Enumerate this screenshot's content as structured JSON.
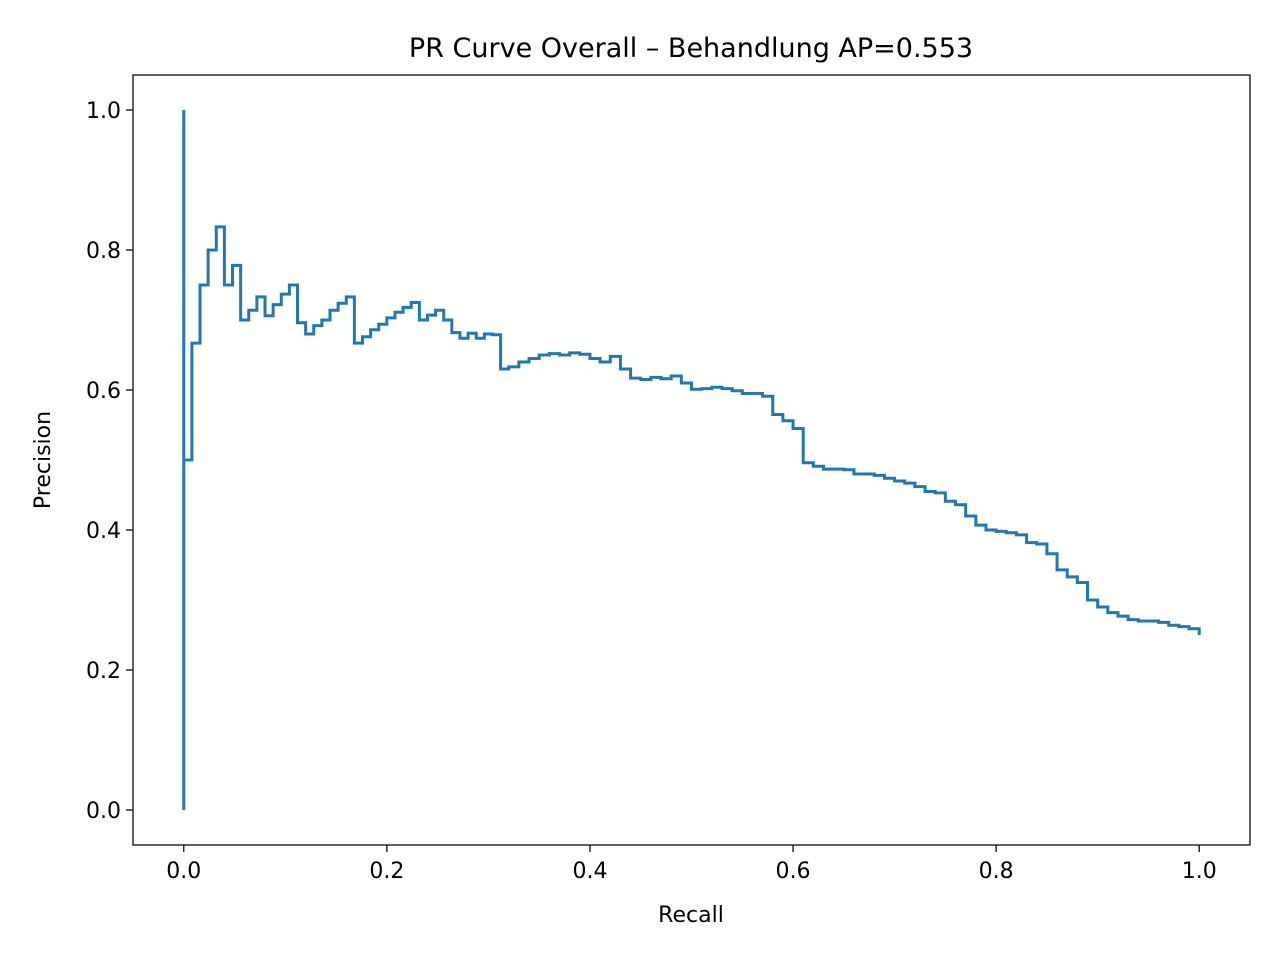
{
  "chart_data": {
    "type": "line",
    "drawstyle": "steps-post",
    "title": "PR Curve Overall – Behandlung  AP=0.553",
    "xlabel": "Recall",
    "ylabel": "Precision",
    "xlim": [
      -0.05,
      1.05
    ],
    "ylim": [
      -0.05,
      1.05
    ],
    "xticks": [
      0.0,
      0.2,
      0.4,
      0.6,
      0.8,
      1.0
    ],
    "xtick_labels": [
      "0.0",
      "0.2",
      "0.4",
      "0.6",
      "0.8",
      "1.0"
    ],
    "yticks": [
      0.0,
      0.2,
      0.4,
      0.6,
      0.8,
      1.0
    ],
    "ytick_labels": [
      "0.0",
      "0.2",
      "0.4",
      "0.6",
      "0.8",
      "1.0"
    ],
    "grid": false,
    "legend": "none",
    "color": "#1f77b4",
    "series": [
      {
        "x": [
          0.0,
          0.0,
          0.0,
          0.008,
          0.016,
          0.024,
          0.032,
          0.04,
          0.048,
          0.056,
          0.064,
          0.072,
          0.08,
          0.088,
          0.096,
          0.104,
          0.112,
          0.12,
          0.128,
          0.136,
          0.144,
          0.152,
          0.16,
          0.168,
          0.176,
          0.184,
          0.192,
          0.2,
          0.208,
          0.216,
          0.224,
          0.232,
          0.24,
          0.248,
          0.256,
          0.264,
          0.272,
          0.28,
          0.288,
          0.296,
          0.304,
          0.312,
          0.32,
          0.33,
          0.34,
          0.35,
          0.36,
          0.37,
          0.38,
          0.39,
          0.4,
          0.41,
          0.42,
          0.43,
          0.44,
          0.45,
          0.46,
          0.47,
          0.48,
          0.49,
          0.5,
          0.51,
          0.52,
          0.53,
          0.54,
          0.55,
          0.56,
          0.57,
          0.58,
          0.59,
          0.6,
          0.61,
          0.62,
          0.63,
          0.64,
          0.65,
          0.66,
          0.67,
          0.68,
          0.69,
          0.7,
          0.71,
          0.72,
          0.73,
          0.74,
          0.75,
          0.76,
          0.77,
          0.78,
          0.79,
          0.8,
          0.81,
          0.82,
          0.83,
          0.84,
          0.85,
          0.86,
          0.87,
          0.88,
          0.89,
          0.9,
          0.91,
          0.92,
          0.93,
          0.94,
          0.95,
          0.96,
          0.97,
          0.98,
          0.99,
          1.0
        ],
        "y": [
          0.0,
          1.0,
          0.5,
          0.667,
          0.75,
          0.8,
          0.833,
          0.75,
          0.778,
          0.7,
          0.714,
          0.733,
          0.706,
          0.722,
          0.737,
          0.75,
          0.696,
          0.68,
          0.692,
          0.7,
          0.714,
          0.724,
          0.733,
          0.667,
          0.676,
          0.686,
          0.694,
          0.703,
          0.711,
          0.718,
          0.725,
          0.7,
          0.707,
          0.714,
          0.7,
          0.682,
          0.674,
          0.681,
          0.674,
          0.68,
          0.679,
          0.63,
          0.633,
          0.64,
          0.645,
          0.65,
          0.652,
          0.65,
          0.653,
          0.651,
          0.645,
          0.64,
          0.648,
          0.63,
          0.617,
          0.615,
          0.618,
          0.616,
          0.62,
          0.61,
          0.601,
          0.602,
          0.604,
          0.602,
          0.599,
          0.595,
          0.595,
          0.591,
          0.565,
          0.556,
          0.545,
          0.496,
          0.491,
          0.487,
          0.487,
          0.486,
          0.48,
          0.48,
          0.478,
          0.474,
          0.47,
          0.467,
          0.462,
          0.455,
          0.453,
          0.441,
          0.436,
          0.42,
          0.407,
          0.4,
          0.398,
          0.396,
          0.393,
          0.382,
          0.38,
          0.366,
          0.343,
          0.333,
          0.325,
          0.3,
          0.29,
          0.282,
          0.277,
          0.272,
          0.27,
          0.27,
          0.268,
          0.264,
          0.262,
          0.259,
          0.25
        ]
      }
    ]
  }
}
